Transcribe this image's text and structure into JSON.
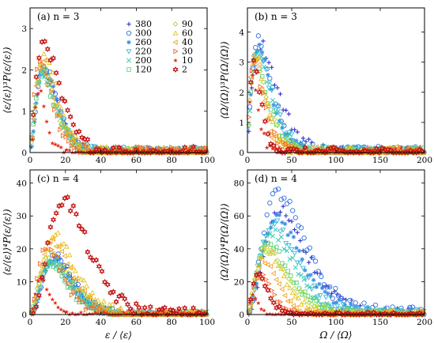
{
  "figure": {
    "x_label_bottom_left": "ε / ⟨ε⟩",
    "x_label_bottom_right": "Ω / ⟨Ω⟩"
  },
  "legend": {
    "entries": [
      {
        "label": "380",
        "color": "#3030c8",
        "marker": "plus"
      },
      {
        "label": "300",
        "color": "#2f6fe0",
        "marker": "circle"
      },
      {
        "label": "260",
        "color": "#3f8fe6",
        "marker": "asterisk"
      },
      {
        "label": "220",
        "color": "#35b8d8",
        "marker": "triangle-down"
      },
      {
        "label": "200",
        "color": "#3ac8b4",
        "marker": "x"
      },
      {
        "label": "120",
        "color": "#5fd07a",
        "marker": "square"
      },
      {
        "label": "90",
        "color": "#a8d93a",
        "marker": "diamond"
      },
      {
        "label": "60",
        "color": "#e6c21e",
        "marker": "triangle-up"
      },
      {
        "label": "40",
        "color": "#f5a21e",
        "marker": "triangle-left"
      },
      {
        "label": "30",
        "color": "#f06a2a",
        "marker": "triangle-right"
      },
      {
        "label": "10",
        "color": "#e32c1c",
        "marker": "star"
      },
      {
        "label": "2",
        "color": "#c41212",
        "marker": "hexagram"
      }
    ]
  },
  "chart_data": [
    {
      "type": "scatter",
      "panel": "(a) n = 3",
      "ylabel": "⟨ε/⟨ε⟩⟩³P(ε/⟨ε⟩)",
      "xlim": [
        0,
        100
      ],
      "ylim": [
        0,
        3.5
      ],
      "xticks": [
        "0",
        "20",
        "40",
        "60",
        "80",
        "100"
      ],
      "yticks": [
        "0",
        "1",
        "2",
        "3"
      ],
      "series": [
        {
          "name": "380",
          "peak_x": 8,
          "peak_y": 2.0,
          "width": 9
        },
        {
          "name": "300",
          "peak_x": 8,
          "peak_y": 2.1,
          "width": 9
        },
        {
          "name": "260",
          "peak_x": 8,
          "peak_y": 2.0,
          "width": 9
        },
        {
          "name": "220",
          "peak_x": 8,
          "peak_y": 2.0,
          "width": 9
        },
        {
          "name": "200",
          "peak_x": 7,
          "peak_y": 1.9,
          "width": 9
        },
        {
          "name": "120",
          "peak_x": 7,
          "peak_y": 1.9,
          "width": 9
        },
        {
          "name": "90",
          "peak_x": 7,
          "peak_y": 2.1,
          "width": 9
        },
        {
          "name": "60",
          "peak_x": 8,
          "peak_y": 2.3,
          "width": 9
        },
        {
          "name": "40",
          "peak_x": 7,
          "peak_y": 2.2,
          "width": 9
        },
        {
          "name": "30",
          "peak_x": 6,
          "peak_y": 2.3,
          "width": 8
        },
        {
          "name": "10",
          "peak_x": 5,
          "peak_y": 1.5,
          "width": 4
        },
        {
          "name": "2",
          "peak_x": 8,
          "peak_y": 2.7,
          "width": 11
        }
      ]
    },
    {
      "type": "scatter",
      "panel": "(b) n = 3",
      "ylabel": "⟨Ω/⟨Ω⟩⟩³P(Ω/⟨Ω⟩)",
      "xlim": [
        0,
        200
      ],
      "ylim": [
        0,
        4.8
      ],
      "xticks": [
        "0",
        "50",
        "100",
        "150",
        "200"
      ],
      "yticks": [
        "0",
        "1",
        "2",
        "3",
        "4"
      ],
      "series": [
        {
          "name": "380",
          "peak_x": 15,
          "peak_y": 3.6,
          "width": 30
        },
        {
          "name": "300",
          "peak_x": 12,
          "peak_y": 3.7,
          "width": 32
        },
        {
          "name": "260",
          "peak_x": 12,
          "peak_y": 3.5,
          "width": 30
        },
        {
          "name": "220",
          "peak_x": 12,
          "peak_y": 3.4,
          "width": 28
        },
        {
          "name": "200",
          "peak_x": 12,
          "peak_y": 3.3,
          "width": 26
        },
        {
          "name": "120",
          "peak_x": 10,
          "peak_y": 3.1,
          "width": 24
        },
        {
          "name": "90",
          "peak_x": 10,
          "peak_y": 3.0,
          "width": 22
        },
        {
          "name": "60",
          "peak_x": 9,
          "peak_y": 3.2,
          "width": 20
        },
        {
          "name": "40",
          "peak_x": 8,
          "peak_y": 3.4,
          "width": 17
        },
        {
          "name": "30",
          "peak_x": 8,
          "peak_y": 3.0,
          "width": 15
        },
        {
          "name": "10",
          "peak_x": 6,
          "peak_y": 2.5,
          "width": 8
        },
        {
          "name": "2",
          "peak_x": 7,
          "peak_y": 2.9,
          "width": 12
        }
      ]
    },
    {
      "type": "scatter",
      "panel": "(c) n = 4",
      "ylabel": "⟨ε/⟨ε⟩⟩⁴P(ε/⟨ε⟩)",
      "xlim": [
        0,
        100
      ],
      "ylim": [
        0,
        44
      ],
      "xticks": [
        "0",
        "20",
        "40",
        "60",
        "80",
        "100"
      ],
      "yticks": [
        "0",
        "10",
        "20",
        "30",
        "40"
      ],
      "series": [
        {
          "name": "380",
          "peak_x": 14,
          "peak_y": 17,
          "width": 11
        },
        {
          "name": "300",
          "peak_x": 14,
          "peak_y": 18,
          "width": 11
        },
        {
          "name": "260",
          "peak_x": 13,
          "peak_y": 17,
          "width": 11
        },
        {
          "name": "220",
          "peak_x": 13,
          "peak_y": 16,
          "width": 11
        },
        {
          "name": "200",
          "peak_x": 12,
          "peak_y": 16,
          "width": 11
        },
        {
          "name": "120",
          "peak_x": 11,
          "peak_y": 15,
          "width": 12
        },
        {
          "name": "90",
          "peak_x": 12,
          "peak_y": 18,
          "width": 14
        },
        {
          "name": "60",
          "peak_x": 14,
          "peak_y": 24,
          "width": 13
        },
        {
          "name": "40",
          "peak_x": 13,
          "peak_y": 22,
          "width": 12
        },
        {
          "name": "30",
          "peak_x": 10,
          "peak_y": 21,
          "width": 10
        },
        {
          "name": "10",
          "peak_x": 6,
          "peak_y": 11,
          "width": 5
        },
        {
          "name": "2",
          "peak_x": 19,
          "peak_y": 35,
          "width": 14
        }
      ]
    },
    {
      "type": "scatter",
      "panel": "(d) n = 4",
      "ylabel": "⟨Ω/⟨Ω⟩⟩⁴P(Ω/⟨Ω⟩)",
      "xlim": [
        0,
        200
      ],
      "ylim": [
        0,
        88
      ],
      "xticks": [
        "0",
        "50",
        "100",
        "150",
        "200"
      ],
      "yticks": [
        "0",
        "20",
        "40",
        "60",
        "80"
      ],
      "series": [
        {
          "name": "380",
          "peak_x": 38,
          "peak_y": 63,
          "width": 32
        },
        {
          "name": "300",
          "peak_x": 35,
          "peak_y": 74,
          "width": 34
        },
        {
          "name": "260",
          "peak_x": 33,
          "peak_y": 58,
          "width": 32
        },
        {
          "name": "220",
          "peak_x": 30,
          "peak_y": 55,
          "width": 30
        },
        {
          "name": "200",
          "peak_x": 28,
          "peak_y": 50,
          "width": 30
        },
        {
          "name": "120",
          "peak_x": 24,
          "peak_y": 43,
          "width": 30
        },
        {
          "name": "90",
          "peak_x": 22,
          "peak_y": 40,
          "width": 30
        },
        {
          "name": "60",
          "peak_x": 22,
          "peak_y": 40,
          "width": 22
        },
        {
          "name": "40",
          "peak_x": 18,
          "peak_y": 33,
          "width": 18
        },
        {
          "name": "30",
          "peak_x": 15,
          "peak_y": 24,
          "width": 15
        },
        {
          "name": "10",
          "peak_x": 6,
          "peak_y": 12,
          "width": 7
        },
        {
          "name": "2",
          "peak_x": 12,
          "peak_y": 25,
          "width": 12
        }
      ]
    }
  ]
}
